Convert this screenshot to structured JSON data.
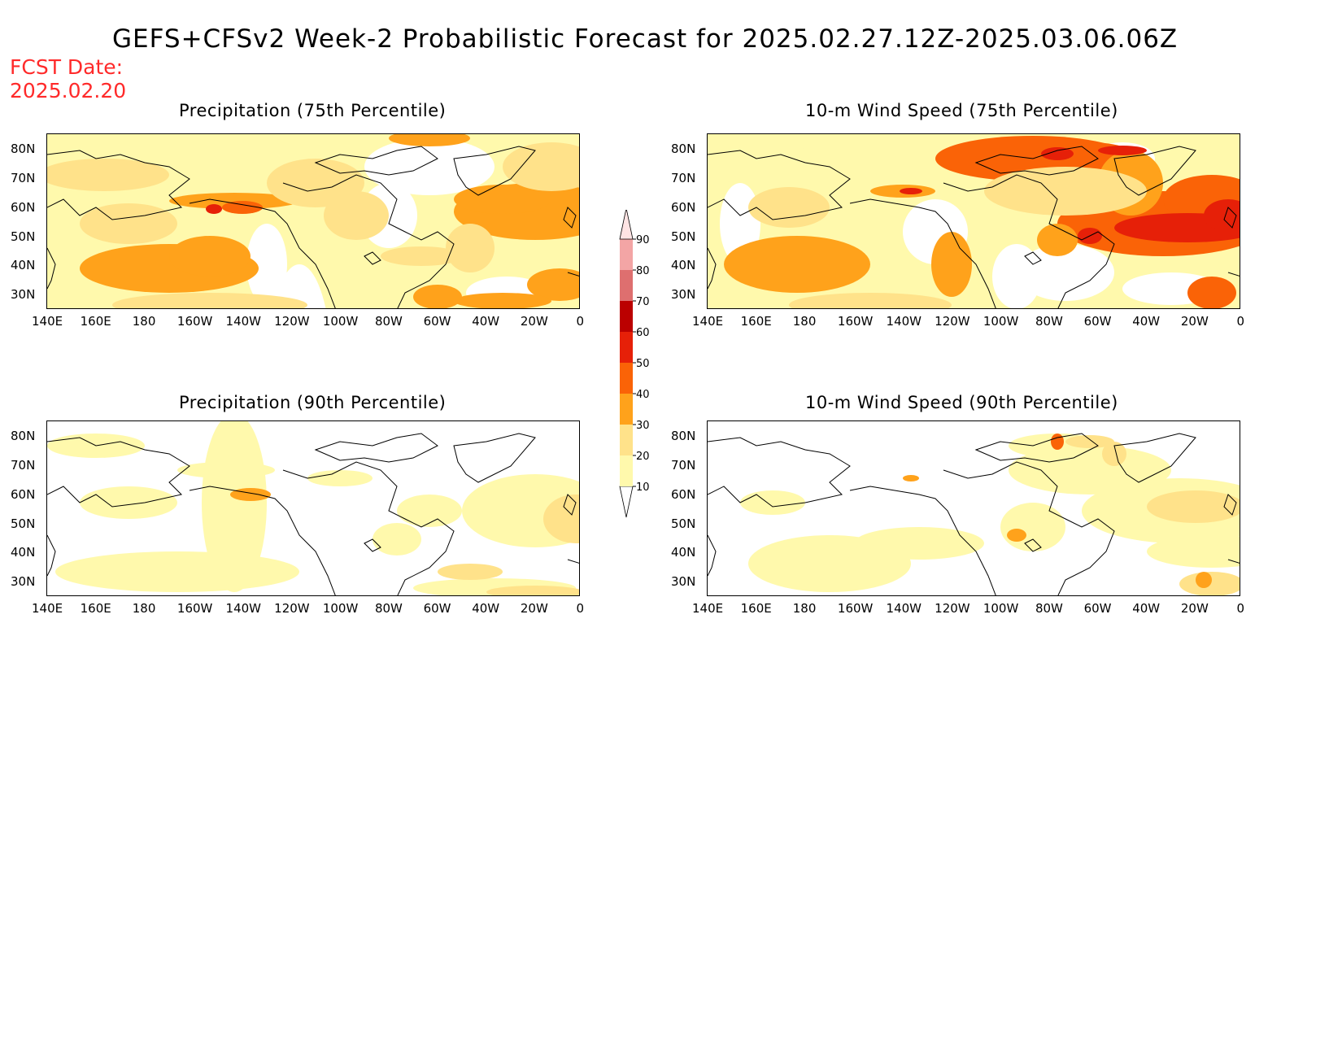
{
  "header": {
    "title": "GEFS+CFSv2 Week-2 Probabilistic Forecast for 2025.02.27.12Z-2025.03.06.06Z",
    "fcst_label": "FCST Date:",
    "fcst_date": "2025.02.20"
  },
  "panels": [
    {
      "title": "Precipitation (75th Percentile)",
      "pattern": "precip75"
    },
    {
      "title": "10-m Wind Speed (75th Percentile)",
      "pattern": "wind75"
    },
    {
      "title": "Precipitation (90th Percentile)",
      "pattern": "precip90"
    },
    {
      "title": "10-m Wind Speed (90th Percentile)",
      "pattern": "wind90"
    }
  ],
  "axes": {
    "lon_labels": [
      "140E",
      "160E",
      "180",
      "160W",
      "140W",
      "120W",
      "100W",
      "80W",
      "60W",
      "40W",
      "20W",
      "0"
    ],
    "lat_labels": [
      "80N",
      "70N",
      "60N",
      "50N",
      "40N",
      "30N"
    ]
  },
  "colorbar": {
    "levels": [
      "10",
      "20",
      "30",
      "40",
      "50",
      "60",
      "70",
      "80",
      "90"
    ],
    "colors": [
      "#fff9ac",
      "#ffe28a",
      "#ffa21b",
      "#fa6307",
      "#e62008",
      "#bb0000",
      "#de6f6f",
      "#f3a5a5",
      "#ffe4e4"
    ]
  }
}
